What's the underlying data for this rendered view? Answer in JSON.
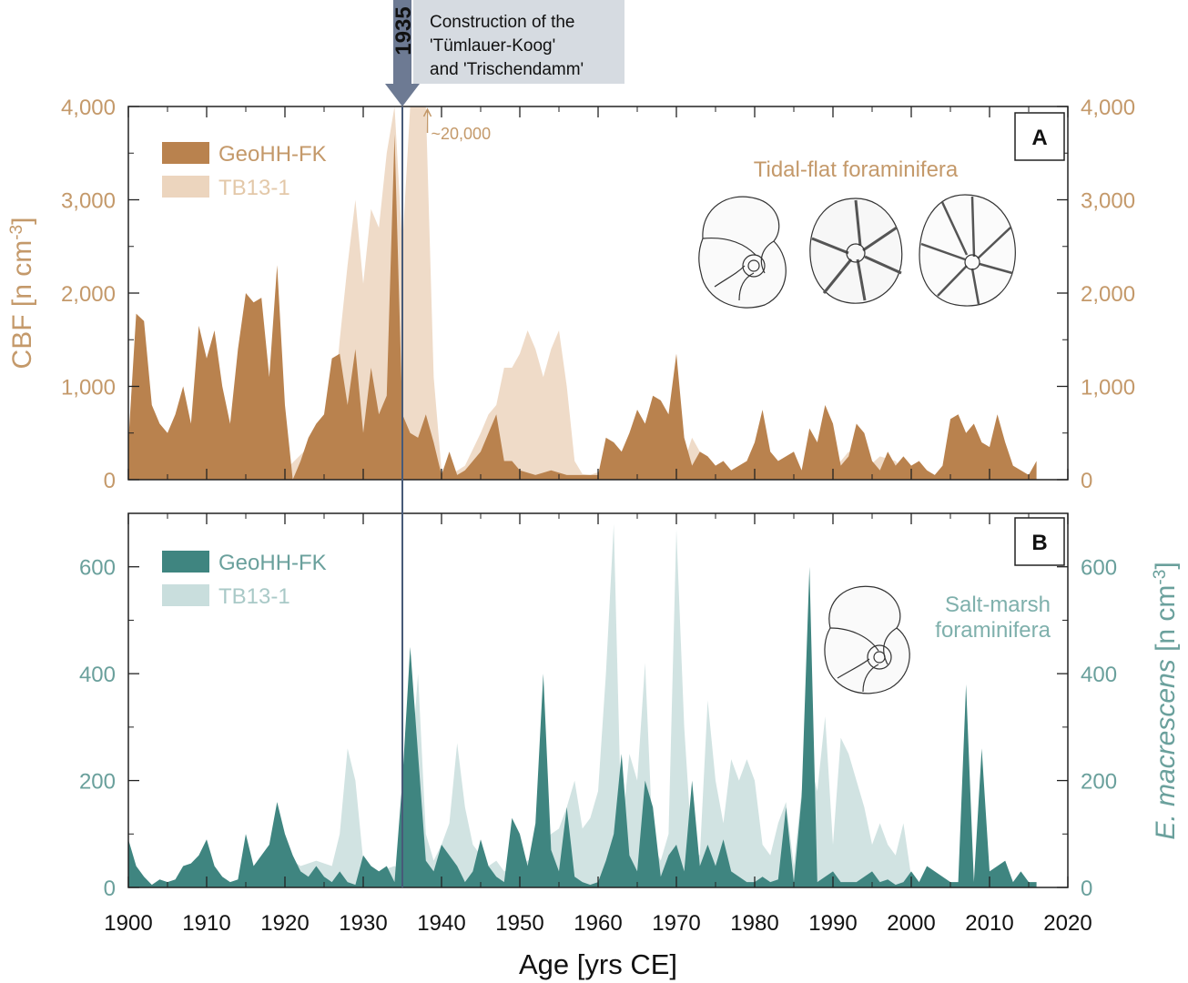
{
  "annotation": {
    "year_label": "1935",
    "year": 1935,
    "lines": [
      "Construction of the",
      "'Tümlauer-Koog'",
      "and 'Trischendamm'"
    ]
  },
  "colors": {
    "brown_dark": "#b9824e",
    "brown_light": "#ecd5be",
    "teal_dark": "#3f8580",
    "teal_light": "#c9dedd",
    "brown_text": "#c4996a",
    "teal_text": "#6aa09c",
    "marker_line": "#475a78",
    "arrow": "#6d7a93",
    "callout_bg": "#d6dbe1"
  },
  "x_axis": {
    "label": "Age [yrs CE]",
    "min": 1900,
    "max": 2020,
    "ticks": [
      1900,
      1910,
      1920,
      1930,
      1940,
      1950,
      1960,
      1970,
      1980,
      1990,
      2000,
      2010,
      2020
    ],
    "tick_labels": [
      "1900",
      "1910",
      "1920",
      "1930",
      "1940",
      "1950",
      "1960",
      "1970",
      "1980",
      "1990",
      "2000",
      "2010",
      "2020"
    ]
  },
  "chart_data": [
    {
      "type": "area",
      "panel": "A",
      "panel_label": "A",
      "title": "Tidal-flat foraminifera",
      "ylabel_left": "CBF [n cm-3]",
      "ylabel_parts": [
        "CBF [n cm",
        "-3",
        "]"
      ],
      "ylim": [
        0,
        4000
      ],
      "yticks": [
        0,
        1000,
        2000,
        3000,
        4000
      ],
      "ytick_labels": [
        "0",
        "1,000",
        "2,000",
        "3,000",
        "4,000"
      ],
      "off_scale_note": "~20,000",
      "off_scale_year": 1938.2,
      "series": [
        {
          "name": "TB13-1",
          "style": "light",
          "x": [
            1920,
            1923,
            1926,
            1927,
            1928,
            1929,
            1930,
            1931,
            1932,
            1933,
            1934,
            1935,
            1936,
            1937,
            1938,
            1939,
            1940,
            1941,
            1943,
            1945,
            1946,
            1947,
            1948,
            1949,
            1950,
            1951,
            1952,
            1953,
            1954,
            1955,
            1956,
            1957,
            1958,
            1959,
            1960,
            1962,
            1964,
            1966,
            1968,
            1970,
            1971,
            1972,
            1973,
            1974,
            1976,
            1978,
            1980,
            1982,
            1984,
            1986,
            1988,
            1990,
            1992,
            1994,
            1996,
            1998,
            2000
          ],
          "values": [
            100,
            350,
            600,
            1500,
            2300,
            3000,
            2100,
            2900,
            2700,
            3500,
            4000,
            2500,
            4000,
            4000,
            4000,
            1100,
            100,
            40,
            150,
            500,
            700,
            800,
            1200,
            1200,
            1350,
            1600,
            1400,
            1100,
            1400,
            1600,
            1000,
            200,
            60,
            50,
            80,
            80,
            100,
            120,
            60,
            100,
            200,
            450,
            300,
            50,
            80,
            100,
            150,
            100,
            200,
            100,
            80,
            100,
            300,
            100,
            250,
            200,
            0
          ]
        },
        {
          "name": "GeoHH-FK",
          "style": "dark",
          "x": [
            1900,
            1901,
            1902,
            1903,
            1904,
            1905,
            1906,
            1907,
            1908,
            1909,
            1910,
            1911,
            1912,
            1913,
            1914,
            1915,
            1916,
            1917,
            1918,
            1919,
            1920,
            1921,
            1922,
            1923,
            1924,
            1925,
            1926,
            1927,
            1928,
            1929,
            1930,
            1931,
            1932,
            1933,
            1934,
            1935,
            1936,
            1937,
            1938,
            1939,
            1940,
            1941,
            1942,
            1943,
            1944,
            1945,
            1946,
            1947,
            1948,
            1949,
            1950,
            1952,
            1954,
            1956,
            1958,
            1960,
            1961,
            1962,
            1963,
            1964,
            1965,
            1966,
            1967,
            1968,
            1969,
            1970,
            1971,
            1972,
            1973,
            1974,
            1975,
            1976,
            1977,
            1978,
            1979,
            1980,
            1981,
            1982,
            1983,
            1984,
            1985,
            1986,
            1987,
            1988,
            1989,
            1990,
            1991,
            1992,
            1993,
            1994,
            1995,
            1996,
            1997,
            1998,
            1999,
            2000,
            2001,
            2002,
            2003,
            2004,
            2005,
            2006,
            2007,
            2008,
            2009,
            2010,
            2011,
            2012,
            2013,
            2014,
            2015,
            2016
          ],
          "values": [
            400,
            1780,
            1700,
            800,
            600,
            500,
            700,
            1000,
            600,
            1650,
            1300,
            1600,
            1000,
            600,
            1400,
            2000,
            1900,
            1950,
            1100,
            2300,
            800,
            0,
            200,
            450,
            600,
            700,
            1300,
            1350,
            800,
            1400,
            500,
            1200,
            700,
            900,
            3700,
            700,
            500,
            450,
            700,
            400,
            50,
            300,
            50,
            100,
            200,
            300,
            500,
            700,
            200,
            200,
            100,
            50,
            100,
            50,
            50,
            50,
            450,
            400,
            300,
            500,
            750,
            600,
            900,
            850,
            700,
            1350,
            450,
            150,
            300,
            250,
            150,
            200,
            100,
            150,
            200,
            400,
            750,
            300,
            200,
            250,
            300,
            100,
            550,
            400,
            800,
            600,
            150,
            250,
            600,
            500,
            200,
            100,
            300,
            150,
            250,
            150,
            200,
            100,
            50,
            150,
            650,
            700,
            500,
            600,
            400,
            350,
            700,
            400,
            150,
            100,
            50,
            200
          ]
        }
      ]
    },
    {
      "type": "area",
      "panel": "B",
      "panel_label": "B",
      "title": "Salt-marsh foraminifera",
      "title_lines": [
        "Salt-marsh",
        "foraminifera"
      ],
      "ylabel_right": "E. macrescens [n cm-3]",
      "ylabel_parts": [
        "E. macrescens",
        " [n cm",
        "-3",
        "]"
      ],
      "ylim": [
        0,
        700
      ],
      "yticks": [
        0,
        200,
        400,
        600
      ],
      "ytick_labels": [
        "0",
        "200",
        "400",
        "600"
      ],
      "series": [
        {
          "name": "TB13-1",
          "style": "light",
          "x": [
            1920,
            1922,
            1924,
            1926,
            1927,
            1928,
            1929,
            1930,
            1931,
            1932,
            1934,
            1935,
            1936,
            1937,
            1938,
            1939,
            1940,
            1941,
            1942,
            1943,
            1944,
            1945,
            1946,
            1947,
            1948,
            1950,
            1952,
            1954,
            1955,
            1956,
            1957,
            1958,
            1959,
            1960,
            1961,
            1962,
            1963,
            1964,
            1965,
            1966,
            1967,
            1968,
            1969,
            1970,
            1971,
            1972,
            1973,
            1974,
            1975,
            1976,
            1977,
            1978,
            1979,
            1980,
            1981,
            1982,
            1983,
            1984,
            1985,
            1986,
            1987,
            1988,
            1989,
            1990,
            1991,
            1992,
            1993,
            1994,
            1995,
            1996,
            1997,
            1998,
            1999,
            2000
          ],
          "values": [
            60,
            40,
            50,
            40,
            100,
            260,
            200,
            50,
            40,
            30,
            40,
            30,
            200,
            400,
            100,
            50,
            80,
            120,
            270,
            150,
            80,
            60,
            40,
            50,
            30,
            40,
            60,
            100,
            110,
            150,
            200,
            110,
            130,
            180,
            400,
            680,
            100,
            250,
            200,
            420,
            80,
            50,
            100,
            670,
            300,
            70,
            60,
            350,
            200,
            120,
            240,
            200,
            240,
            200,
            80,
            60,
            120,
            160,
            40,
            180,
            240,
            180,
            320,
            80,
            280,
            250,
            200,
            150,
            80,
            120,
            80,
            60,
            120,
            20
          ]
        },
        {
          "name": "GeoHH-FK",
          "style": "dark",
          "x": [
            1900,
            1901,
            1902,
            1903,
            1904,
            1905,
            1906,
            1907,
            1908,
            1909,
            1910,
            1911,
            1912,
            1913,
            1914,
            1915,
            1916,
            1917,
            1918,
            1919,
            1920,
            1921,
            1922,
            1923,
            1924,
            1925,
            1926,
            1927,
            1928,
            1929,
            1930,
            1931,
            1932,
            1933,
            1934,
            1935,
            1936,
            1937,
            1938,
            1939,
            1940,
            1941,
            1942,
            1943,
            1944,
            1945,
            1946,
            1947,
            1948,
            1949,
            1950,
            1951,
            1952,
            1953,
            1954,
            1955,
            1956,
            1957,
            1958,
            1959,
            1960,
            1961,
            1962,
            1963,
            1964,
            1965,
            1966,
            1967,
            1968,
            1969,
            1970,
            1971,
            1972,
            1973,
            1974,
            1975,
            1976,
            1977,
            1978,
            1979,
            1980,
            1981,
            1982,
            1983,
            1984,
            1985,
            1986,
            1987,
            1988,
            1989,
            1990,
            1991,
            1992,
            1993,
            1994,
            1995,
            1996,
            1997,
            1998,
            1999,
            2000,
            2001,
            2002,
            2003,
            2004,
            2005,
            2006,
            2007,
            2008,
            2009,
            2010,
            2011,
            2012,
            2013,
            2014,
            2015,
            2016
          ],
          "values": [
            90,
            40,
            20,
            5,
            15,
            10,
            15,
            40,
            45,
            60,
            90,
            40,
            20,
            10,
            15,
            100,
            40,
            60,
            80,
            160,
            100,
            60,
            30,
            20,
            40,
            20,
            10,
            30,
            10,
            5,
            60,
            40,
            30,
            40,
            10,
            200,
            450,
            250,
            50,
            30,
            80,
            60,
            40,
            10,
            30,
            90,
            40,
            20,
            10,
            130,
            100,
            40,
            120,
            400,
            70,
            30,
            150,
            20,
            10,
            5,
            10,
            50,
            100,
            250,
            60,
            30,
            200,
            150,
            20,
            60,
            80,
            30,
            200,
            40,
            80,
            40,
            90,
            30,
            20,
            10,
            10,
            20,
            10,
            15,
            150,
            10,
            170,
            600,
            10,
            20,
            30,
            10,
            10,
            10,
            20,
            30,
            10,
            15,
            5,
            10,
            30,
            10,
            40,
            30,
            20,
            10,
            10,
            380,
            10,
            260,
            30,
            40,
            50,
            10,
            30,
            10,
            10
          ]
        }
      ]
    }
  ]
}
